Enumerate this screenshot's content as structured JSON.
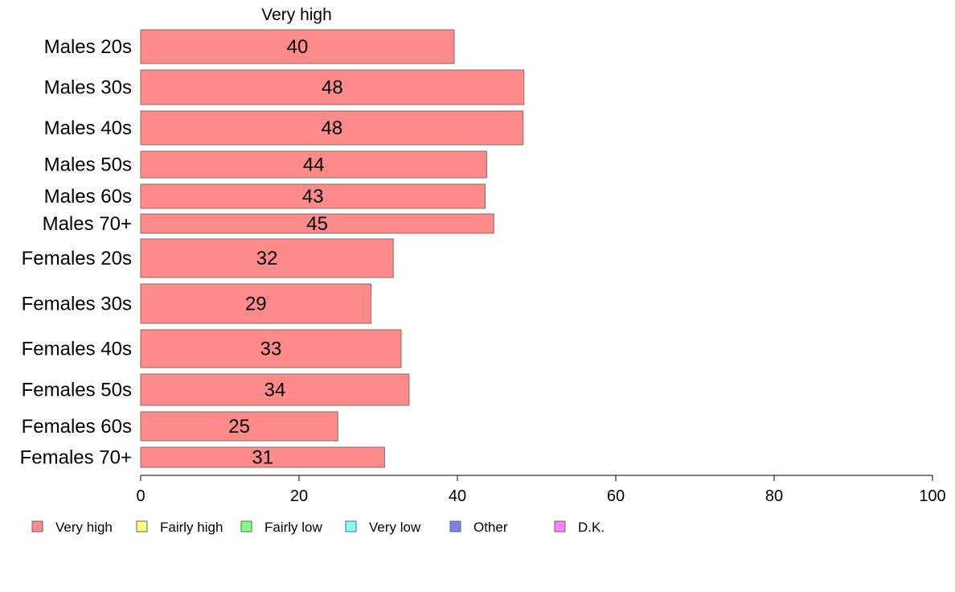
{
  "chart_data": {
    "type": "bar",
    "orientation": "horizontal",
    "series_header": "Very high",
    "categories": [
      "Males 20s",
      "Males 30s",
      "Males 40s",
      "Males 50s",
      "Males 60s",
      "Males 70+",
      "Females 20s",
      "Females 30s",
      "Females 40s",
      "Females 50s",
      "Females 60s",
      "Females 70+"
    ],
    "series": [
      {
        "name": "Very high",
        "color": "#ff8a8a",
        "values": [
          39.6,
          48.4,
          48.3,
          43.7,
          43.5,
          44.6,
          31.9,
          29.1,
          32.9,
          33.9,
          24.9,
          30.8
        ]
      }
    ],
    "value_labels": [
      "40",
      "48",
      "48",
      "44",
      "43",
      "45",
      "32",
      "29",
      "33",
      "34",
      "25",
      "31"
    ],
    "xlim": [
      0,
      100
    ],
    "xticks": [
      0,
      20,
      40,
      60,
      80,
      100
    ],
    "grid": false,
    "legend_position": "bottom",
    "legend": [
      {
        "label": "Very high",
        "color": "#ff8a8a"
      },
      {
        "label": "Fairly high",
        "color": "#ffff80"
      },
      {
        "label": "Fairly low",
        "color": "#80ff80"
      },
      {
        "label": "Very low",
        "color": "#80ffff"
      },
      {
        "label": "Other",
        "color": "#8080f0"
      },
      {
        "label": "D.K.",
        "color": "#ff80ff"
      }
    ]
  }
}
